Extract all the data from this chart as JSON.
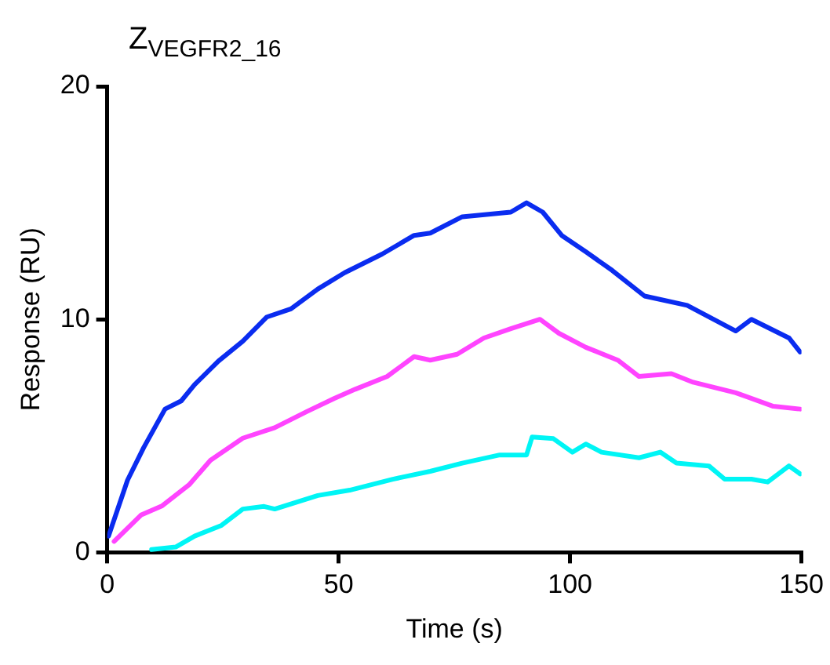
{
  "chart_data": {
    "type": "line",
    "title": "Z$_{VEGFR2_16}$",
    "xlabel": "Time (s)",
    "ylabel": "Response (RU)",
    "xlim": [
      0,
      150
    ],
    "ylim": [
      0,
      20
    ],
    "xticks": [
      0,
      50,
      100,
      150
    ],
    "yticks": [
      0,
      10,
      20
    ],
    "grid": false,
    "legend": false,
    "marker": "none",
    "line_style": "solid",
    "series": [
      {
        "color": "#0a2cf0",
        "x": [
          0.3,
          4.4,
          7.9,
          12.5,
          16,
          18.9,
          24,
          29.3,
          34.5,
          39.7,
          45.5,
          51.3,
          59.4,
          66.3,
          69.8,
          76.7,
          87.2,
          90.6,
          94.1,
          98.2,
          103.4,
          109.1,
          116.1,
          125.3,
          135.8,
          139.2,
          147.3,
          149.7
        ],
        "values": [
          0.7,
          3.1,
          4.5,
          6.15,
          6.5,
          7.2,
          8.2,
          9.06,
          10.1,
          10.45,
          11.3,
          12.0,
          12.8,
          13.6,
          13.7,
          14.4,
          14.6,
          15.0,
          14.6,
          13.6,
          12.9,
          12.1,
          11.0,
          10.6,
          9.5,
          10.0,
          9.2,
          8.6
        ]
      },
      {
        "color": "#ff44ff",
        "x": [
          1.5,
          7.3,
          11.9,
          17.7,
          22.3,
          29.3,
          36.2,
          43.2,
          49,
          53.6,
          60.5,
          66.3,
          69.8,
          75.6,
          81.4,
          87.2,
          93.5,
          97.6,
          103.4,
          110.3,
          114.9,
          121.9,
          126.6,
          135.8,
          143.9,
          149.7
        ],
        "values": [
          0.47,
          1.6,
          2.0,
          2.9,
          3.95,
          4.9,
          5.35,
          6.05,
          6.6,
          7.0,
          7.55,
          8.4,
          8.25,
          8.5,
          9.2,
          9.6,
          10.0,
          9.4,
          8.8,
          8.25,
          7.55,
          7.67,
          7.3,
          6.85,
          6.27,
          6.15
        ]
      },
      {
        "color": "#00f5f5",
        "x": [
          9.6,
          14.8,
          18.9,
          24.7,
          29.3,
          33.9,
          36.2,
          45.5,
          52.4,
          61.7,
          69.8,
          76.7,
          84.8,
          90.6,
          91.8,
          96.4,
          100.5,
          103.4,
          106.8,
          114.9,
          119.5,
          123,
          130,
          133.4,
          139.2,
          142.7,
          147.3,
          149.7
        ],
        "values": [
          0.12,
          0.23,
          0.7,
          1.16,
          1.86,
          1.97,
          1.86,
          2.44,
          2.67,
          3.14,
          3.48,
          3.83,
          4.18,
          4.18,
          4.95,
          4.88,
          4.3,
          4.65,
          4.3,
          4.06,
          4.3,
          3.83,
          3.71,
          3.14,
          3.14,
          3.02,
          3.71,
          3.37
        ]
      }
    ]
  }
}
